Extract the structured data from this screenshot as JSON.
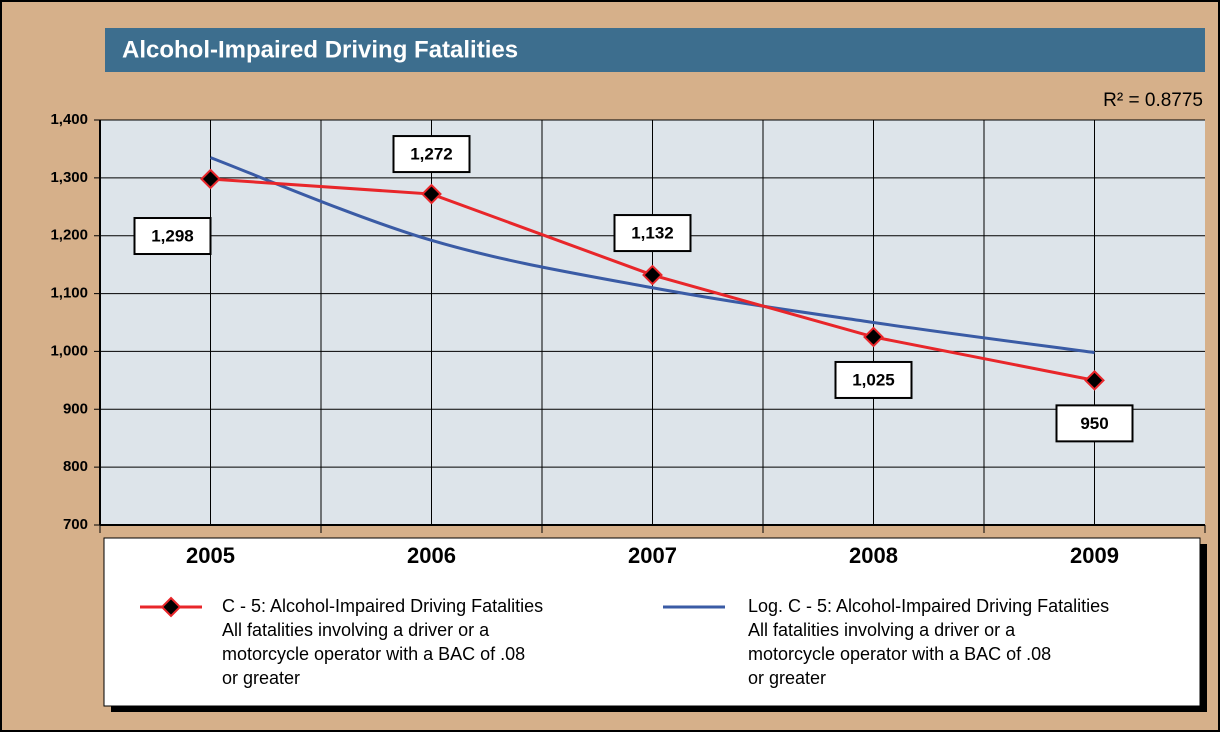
{
  "chart_data": {
    "type": "line",
    "title": "Alcohol-Impaired Driving Fatalities",
    "annotation": "R² = 0.8775",
    "categories": [
      "2005",
      "2006",
      "2007",
      "2008",
      "2009"
    ],
    "ylim": [
      700,
      1400
    ],
    "yticks": [
      700,
      800,
      900,
      {
        "value": 1000,
        "label": "1,000"
      },
      {
        "value": 1100,
        "label": "1,100"
      },
      {
        "value": 1200,
        "label": "1,200"
      },
      {
        "value": 1300,
        "label": "1,300"
      },
      {
        "value": 1400,
        "label": "1,400"
      }
    ],
    "grid": true,
    "series": [
      {
        "name": "C - 5: Alcohol-Impaired Driving Fatalities",
        "description": [
          "All fatalities involving a driver or a",
          "motorcycle operator with a BAC of .08",
          "or greater"
        ],
        "color": "#e8262a",
        "values": [
          1298,
          1272,
          1132,
          1025,
          950
        ],
        "value_labels": [
          "1,298",
          "1,272",
          "1,132",
          "1,025",
          "950"
        ]
      },
      {
        "name": "Log. C - 5: Alcohol-Impaired Driving Fatalities",
        "description": [
          "All fatalities involving a driver or a",
          "motorcycle operator with a BAC of .08",
          "or greater"
        ],
        "color": "#3a5ba5",
        "values": [
          1335,
          1192,
          1110,
          1050,
          998
        ]
      }
    ]
  }
}
